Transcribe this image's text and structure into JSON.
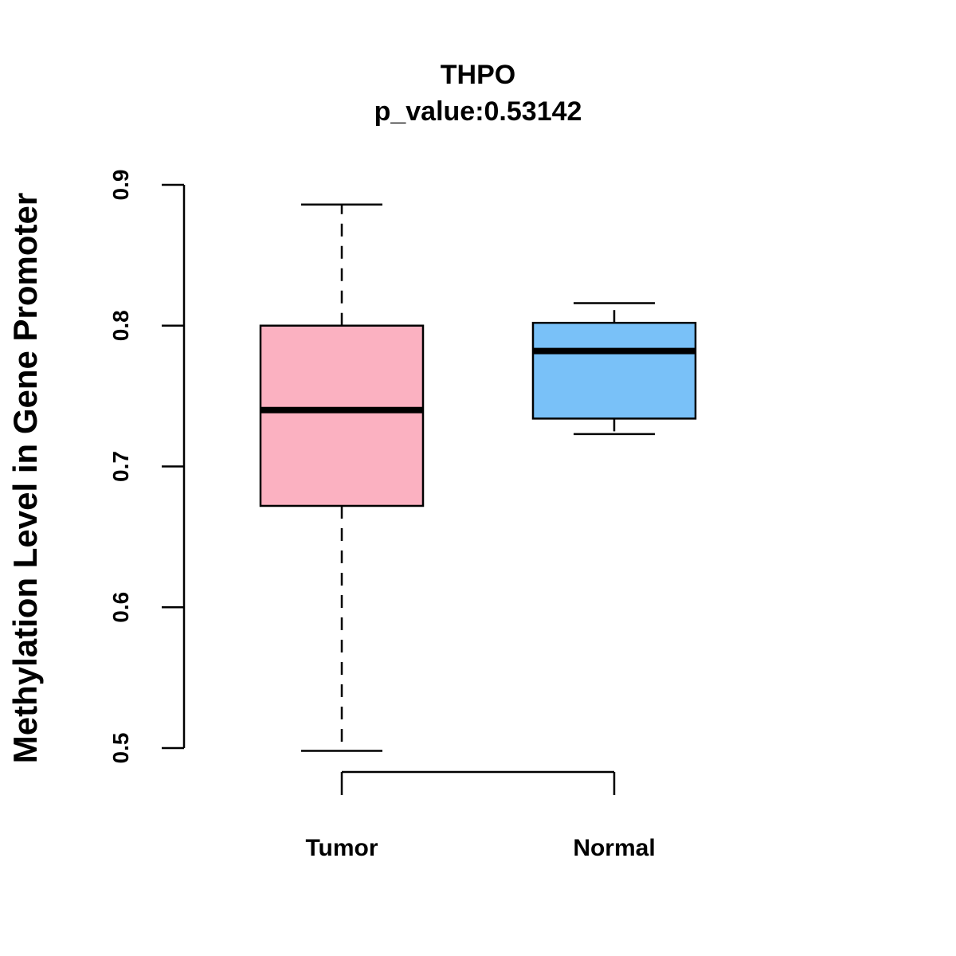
{
  "chart_data": {
    "type": "boxplot",
    "title": "THPO",
    "subtitle": "p_value:0.53142",
    "xlabel": "",
    "ylabel": "Methylation Level in Gene Promoter",
    "ylim": [
      0.5,
      0.9
    ],
    "yticks": [
      0.5,
      0.6,
      0.7,
      0.8,
      0.9
    ],
    "ytick_labels": [
      "0.5",
      "0.6",
      "0.7",
      "0.8",
      "0.9"
    ],
    "categories": [
      "Tumor",
      "Normal"
    ],
    "boxes": [
      {
        "name": "Tumor",
        "color": "#FBB1C1",
        "whisker_low": 0.498,
        "q1": 0.672,
        "median": 0.74,
        "q3": 0.8,
        "whisker_high": 0.886
      },
      {
        "name": "Normal",
        "color": "#79C1F8",
        "whisker_low": 0.723,
        "q1": 0.734,
        "median": 0.782,
        "q3": 0.802,
        "whisker_high": 0.816
      }
    ],
    "grid": false,
    "legend": "none"
  }
}
